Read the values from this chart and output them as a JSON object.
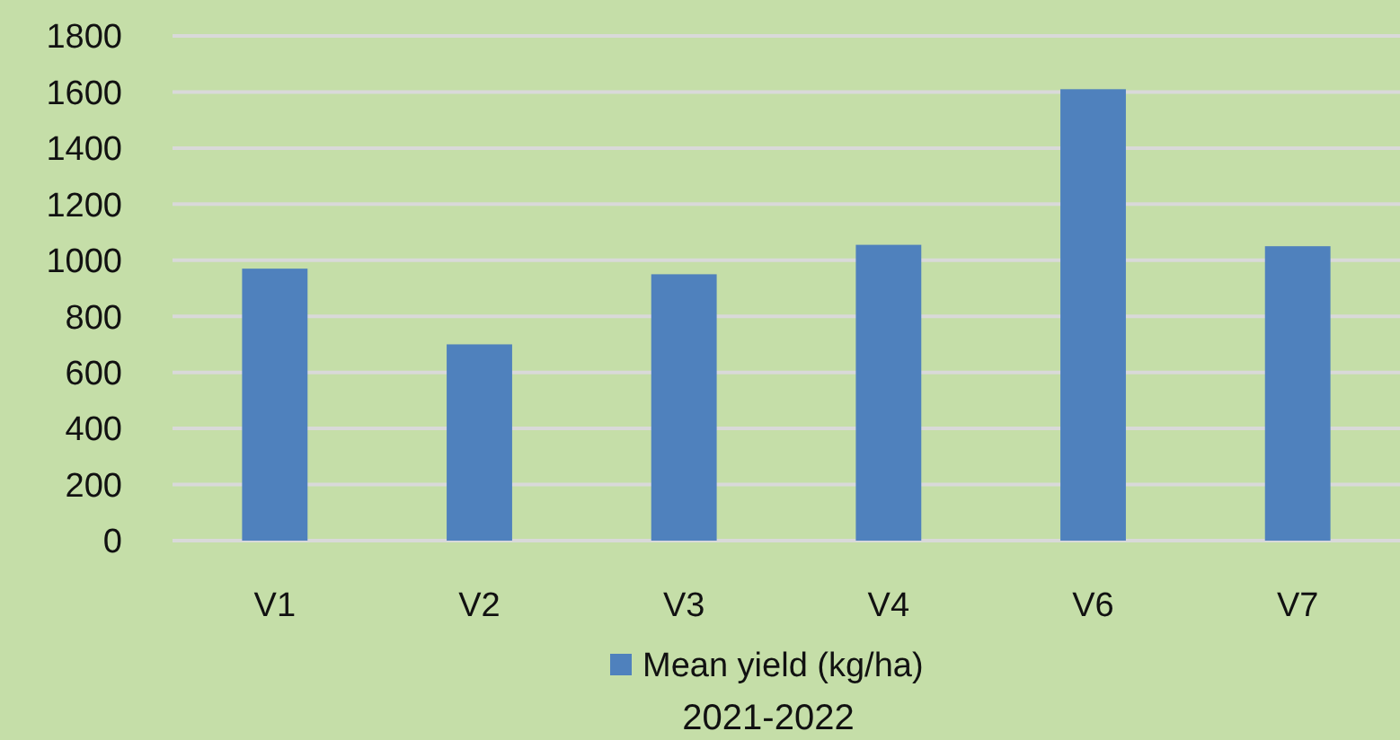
{
  "chart_data": {
    "type": "bar",
    "xlabel": "2021-2022",
    "categories": [
      "V1",
      "V2",
      "V3",
      "V4",
      "V6",
      "V7"
    ],
    "series": [
      {
        "name": "Mean yield (kg/ha)",
        "color": "#4f81bd",
        "values": [
          970,
          700,
          950,
          1055,
          1610,
          1050
        ]
      }
    ],
    "ylim": [
      0,
      1800
    ],
    "yticks": [
      0,
      200,
      400,
      600,
      800,
      1000,
      1200,
      1400,
      1600,
      1800
    ],
    "grid": "y",
    "legend": "bottom"
  }
}
